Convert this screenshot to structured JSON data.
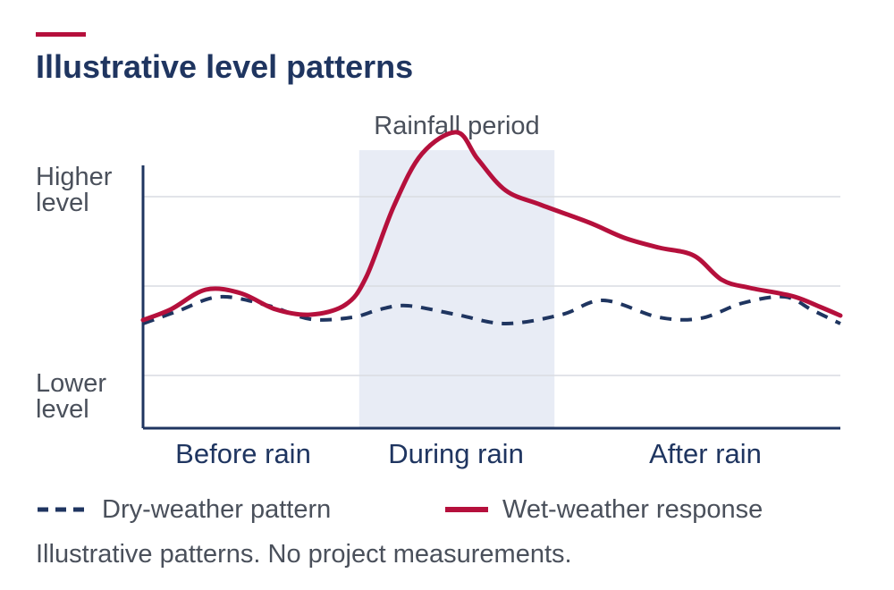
{
  "title": "Illustrative level patterns",
  "footnote": "Illustrative patterns. No project measurements.",
  "colors": {
    "accent": "#b5103c",
    "navy": "#1f3560",
    "text": "#4a505b",
    "band": "#e8ecf5",
    "grid": "#d9dce2"
  },
  "chart_data": {
    "type": "line",
    "ylabel_top": "Higher level",
    "ylabel_top_lines": [
      "Higher",
      "level"
    ],
    "ylabel_bottom": "Lower level",
    "ylabel_bottom_lines": [
      "Lower",
      "level"
    ],
    "categories": [
      "Before rain",
      "During rain",
      "After rain"
    ],
    "highlight_band": {
      "label": "Rainfall period",
      "from": 0.31,
      "to": 0.59
    },
    "xlim": [
      0,
      1
    ],
    "ylim": [
      0,
      3
    ],
    "grid": true,
    "legend_position": "bottom",
    "series": [
      {
        "name": "Dry-weather pattern",
        "style": "dashed",
        "color": "#1f3560",
        "x": [
          0,
          0.05,
          0.11,
          0.18,
          0.24,
          0.3,
          0.34,
          0.38,
          0.45,
          0.52,
          0.6,
          0.66,
          0.74,
          0.8,
          0.86,
          0.92,
          0.96,
          1.0
        ],
        "y": [
          0.58,
          0.72,
          0.88,
          0.78,
          0.63,
          0.65,
          0.74,
          0.78,
          0.68,
          0.58,
          0.68,
          0.84,
          0.65,
          0.64,
          0.81,
          0.88,
          0.73,
          0.58
        ]
      },
      {
        "name": "Wet-weather response",
        "style": "solid",
        "color": "#b5103c",
        "x": [
          0,
          0.04,
          0.09,
          0.14,
          0.19,
          0.24,
          0.29,
          0.32,
          0.36,
          0.4,
          0.45,
          0.48,
          0.52,
          0.57,
          0.64,
          0.69,
          0.74,
          0.79,
          0.83,
          0.87,
          0.93,
          0.97,
          1.0
        ],
        "y": [
          0.62,
          0.74,
          0.96,
          0.92,
          0.74,
          0.68,
          0.79,
          1.1,
          1.9,
          2.48,
          2.72,
          2.42,
          2.07,
          1.91,
          1.71,
          1.54,
          1.43,
          1.34,
          1.07,
          0.98,
          0.89,
          0.77,
          0.67
        ]
      }
    ]
  }
}
